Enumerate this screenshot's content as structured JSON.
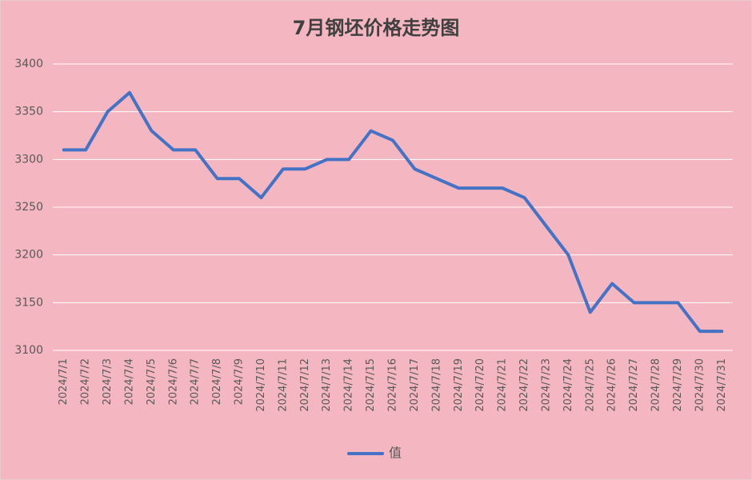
{
  "chart_data": {
    "type": "line",
    "title": "7月钢坯价格走势图",
    "categories": [
      "2024/7/1",
      "2024/7/2",
      "2024/7/3",
      "2024/7/4",
      "2024/7/5",
      "2024/7/6",
      "2024/7/7",
      "2024/7/8",
      "2024/7/9",
      "2024/7/10",
      "2024/7/11",
      "2024/7/12",
      "2024/7/13",
      "2024/7/14",
      "2024/7/15",
      "2024/7/16",
      "2024/7/17",
      "2024/7/18",
      "2024/7/19",
      "2024/7/20",
      "2024/7/21",
      "2024/7/22",
      "2024/7/23",
      "2024/7/24",
      "2024/7/25",
      "2024/7/26",
      "2024/7/27",
      "2024/7/28",
      "2024/7/29",
      "2024/7/30",
      "2024/7/31"
    ],
    "series": [
      {
        "name": "值",
        "color": "#4472c4",
        "values": [
          3310,
          3310,
          3350,
          3370,
          3330,
          3310,
          3310,
          3280,
          3280,
          3260,
          3290,
          3290,
          3300,
          3300,
          3330,
          3320,
          3290,
          3280,
          3270,
          3270,
          3270,
          3260,
          3230,
          3200,
          3140,
          3170,
          3150,
          3150,
          3150,
          3120,
          3120
        ]
      }
    ],
    "ylim": [
      3100,
      3400
    ],
    "yticks": [
      3100,
      3150,
      3200,
      3250,
      3300,
      3350,
      3400
    ],
    "grid": true,
    "legend": "bottom"
  }
}
